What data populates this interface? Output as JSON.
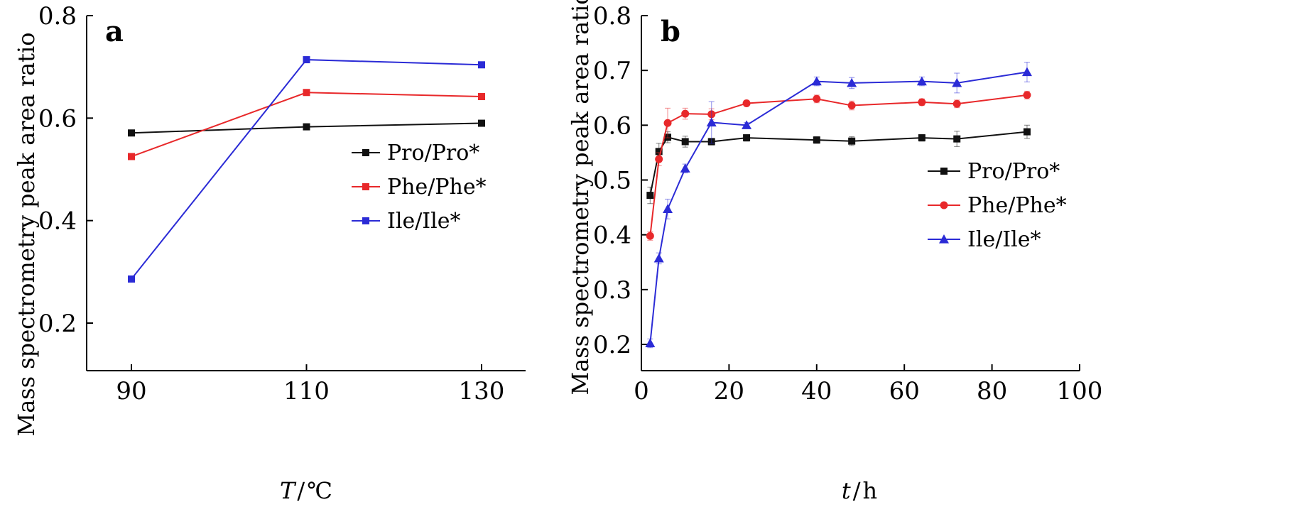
{
  "chart_data": [
    {
      "panel_label": "a",
      "type": "line",
      "xlabel": "T/℃",
      "xlabel_parts": [
        "T",
        "/",
        "℃"
      ],
      "ylabel": "Mass spectrometry peak area ratio",
      "x": [
        90,
        110,
        130
      ],
      "xticks": [
        90,
        110,
        130
      ],
      "xtick_labels": [
        "90",
        "110",
        "130"
      ],
      "xlim": [
        80,
        135
      ],
      "ylim": [
        0.1,
        0.8
      ],
      "yticks": [
        0.2,
        0.4,
        0.6,
        0.8
      ],
      "ytick_labels": [
        "0.2",
        "0.4",
        "0.6",
        "0.8"
      ],
      "grid": false,
      "legend_position": "right",
      "series": [
        {
          "name": "Pro/Pro*",
          "color": "#111111",
          "marker": "square",
          "values": [
            0.571,
            0.583,
            0.59
          ]
        },
        {
          "name": "Phe/Phe*",
          "color": "#e8282a",
          "marker": "square",
          "values": [
            0.525,
            0.65,
            0.642
          ]
        },
        {
          "name": "Ile/Ile*",
          "color": "#2b2bd6",
          "marker": "square",
          "values": [
            0.286,
            0.714,
            0.704
          ]
        }
      ]
    },
    {
      "panel_label": "b",
      "type": "line",
      "xlabel": "t/h",
      "xlabel_parts": [
        "t",
        "/",
        "h"
      ],
      "ylabel": "Mass spectrometry peak area ratio",
      "xlim": [
        0,
        100
      ],
      "xticks": [
        0,
        20,
        40,
        60,
        80,
        100
      ],
      "xtick_labels": [
        "0",
        "20",
        "40",
        "60",
        "80",
        "100"
      ],
      "ylim": [
        0.15,
        0.8
      ],
      "yticks": [
        0.2,
        0.3,
        0.4,
        0.5,
        0.6,
        0.7,
        0.8
      ],
      "ytick_labels": [
        "0.2",
        "0.3",
        "0.4",
        "0.5",
        "0.6",
        "0.7",
        "0.8"
      ],
      "grid": false,
      "legend_position": "right",
      "series": [
        {
          "name": "Pro/Pro*",
          "color": "#111111",
          "marker": "square",
          "x": [
            2,
            4,
            6,
            10,
            16,
            24,
            40,
            48,
            64,
            72,
            88
          ],
          "values": [
            0.472,
            0.552,
            0.578,
            0.57,
            0.57,
            0.577,
            0.573,
            0.571,
            0.577,
            0.575,
            0.588
          ],
          "errors": [
            0.015,
            0.015,
            0.01,
            0.01,
            0.006,
            0.006,
            0.006,
            0.008,
            0.006,
            0.014,
            0.012
          ]
        },
        {
          "name": "Phe/Phe*",
          "color": "#e8282a",
          "marker": "circle",
          "x": [
            2,
            4,
            6,
            10,
            16,
            24,
            40,
            48,
            64,
            72,
            88
          ],
          "values": [
            0.398,
            0.538,
            0.604,
            0.621,
            0.62,
            0.64,
            0.648,
            0.636,
            0.642,
            0.639,
            0.655
          ],
          "errors": [
            0.008,
            0.012,
            0.027,
            0.01,
            0.01,
            0.005,
            0.007,
            0.008,
            0.006,
            0.007,
            0.007
          ]
        },
        {
          "name": "Ile/Ile*",
          "color": "#2b2bd6",
          "marker": "triangle",
          "x": [
            2,
            4,
            6,
            10,
            16,
            24,
            40,
            48,
            64,
            72,
            88
          ],
          "values": [
            0.202,
            0.357,
            0.447,
            0.521,
            0.605,
            0.6,
            0.68,
            0.677,
            0.68,
            0.677,
            0.697
          ],
          "errors": [
            0.008,
            0.01,
            0.018,
            0.008,
            0.038,
            0.005,
            0.008,
            0.01,
            0.008,
            0.018,
            0.018
          ]
        }
      ]
    }
  ]
}
